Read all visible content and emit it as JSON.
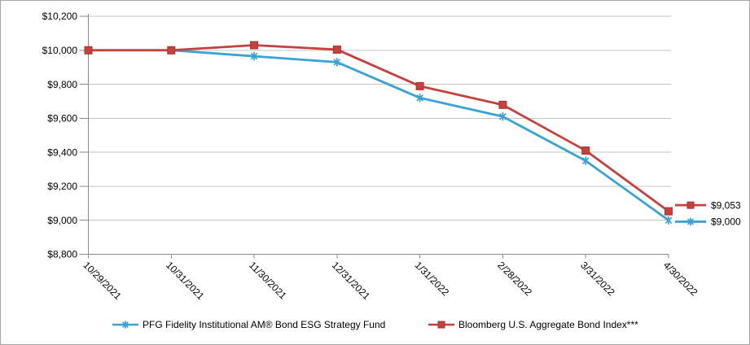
{
  "chart_data": {
    "type": "line",
    "title": "",
    "xlabel": "",
    "ylabel": "",
    "categories": [
      "10/29/2021",
      "10/31/2021",
      "11/30/2021",
      "12/31/2021",
      "1/31/2022",
      "2/28/2022",
      "3/31/2022",
      "4/30/2022"
    ],
    "series": [
      {
        "name": "PFG Fidelity Institutional AM® Bond ESG Strategy Fund",
        "color": "#3aa3d5",
        "marker": "asterisk",
        "marker_edge": "#3aa3d5",
        "values": [
          10000,
          10000,
          9965,
          9930,
          9720,
          9610,
          9350,
          9000
        ],
        "end_label": "$9,000"
      },
      {
        "name": "Bloomberg U.S. Aggregate Bond Index***",
        "color": "#c6403d",
        "marker": "square",
        "marker_edge": "#a83532",
        "values": [
          10000,
          10000,
          10030,
          10004,
          9789,
          9679,
          9410,
          9053
        ],
        "end_label": "$9,053"
      }
    ],
    "ylim": [
      8800,
      10200
    ],
    "ytick_step": 200,
    "yticks": [
      {
        "value": 10200,
        "label": "$10,200"
      },
      {
        "value": 10000,
        "label": "$10,000"
      },
      {
        "value": 9800,
        "label": "$9,800"
      },
      {
        "value": 9600,
        "label": "$9,600"
      },
      {
        "value": 9400,
        "label": "$9,400"
      },
      {
        "value": 9200,
        "label": "$9,200"
      },
      {
        "value": 9000,
        "label": "$9,000"
      },
      {
        "value": 8800,
        "label": "$8,800"
      }
    ],
    "grid": true,
    "legend_position": "bottom",
    "colors": {
      "grid": "#c4c4c4",
      "axis": "#8a8a8a",
      "text": "#000000",
      "frame_border": "#a6a6a6",
      "background": "#ffffff"
    }
  }
}
